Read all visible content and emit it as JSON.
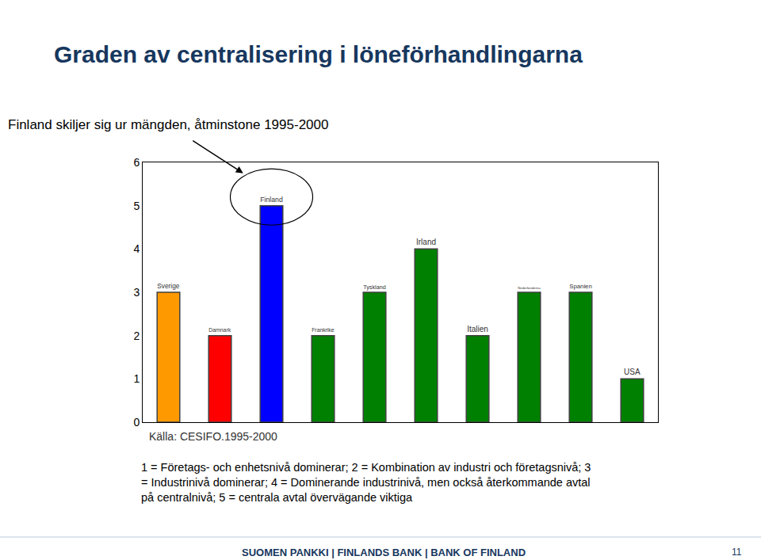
{
  "chart_data": {
    "type": "bar",
    "title": "Graden av centralisering i löneförhandlingarna",
    "subtitle": "Finland skiljer sig ur mängden, åtminstone 1995-2000",
    "categories": [
      "Sverige",
      "Damnark",
      "Finland",
      "Frankrike",
      "Tyskland",
      "Irland",
      "Italien",
      "Nederländerna",
      "Spanien",
      "USA"
    ],
    "values": [
      3,
      2,
      5,
      2,
      3,
      4,
      2,
      3,
      3,
      1
    ],
    "colors": [
      "#FF9900",
      "#FF0000",
      "#0000FF",
      "#008000",
      "#008000",
      "#008000",
      "#008000",
      "#008000",
      "#008000",
      "#008000"
    ],
    "ylim": [
      0,
      6
    ],
    "yticks": [
      0,
      1,
      2,
      3,
      4,
      5,
      6
    ],
    "grid": false,
    "tick_labels": "y",
    "annotations": [
      "Källa: CESIFO.1995-2000",
      "1 = Företags- och enhetsnivå dominerar; 2 = Kombination av industri och företagsnivå; 3",
      "= Industrinivå dominerar; 4 = Dominerande industrinivå, men också återkommande avtal",
      "på centralnivå; 5 = centrala avtal övervägande viktiga",
      "SUOMEN PANKKI | FINLANDS BANK | BANK OF FINLAND",
      "11"
    ]
  }
}
